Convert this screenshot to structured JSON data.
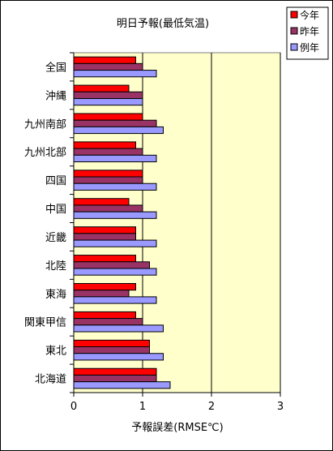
{
  "chart_data": {
    "type": "bar",
    "orientation": "horizontal",
    "title": "明日予報(最低気温)",
    "xlabel": "予報誤差(RMSE℃)",
    "ylabel": "",
    "xlim": [
      0,
      3
    ],
    "xticks": [
      "0",
      "1",
      "2",
      "3"
    ],
    "grid": "vertical lines at 1, 2, 3",
    "legend_position": "top-right",
    "categories": [
      "全国",
      "沖縄",
      "九州南部",
      "九州北部",
      "四国",
      "中国",
      "近畿",
      "北陸",
      "東海",
      "関東甲信",
      "東北",
      "北海道"
    ],
    "series": [
      {
        "name": "今年",
        "color": "#ff0000",
        "values": [
          0.9,
          0.8,
          1.0,
          0.9,
          1.0,
          0.8,
          0.9,
          0.9,
          0.9,
          0.9,
          1.1,
          1.2
        ]
      },
      {
        "name": "昨年",
        "color": "#993366",
        "values": [
          1.0,
          1.0,
          1.2,
          1.0,
          1.0,
          1.0,
          0.9,
          1.1,
          0.8,
          1.0,
          1.1,
          1.2
        ]
      },
      {
        "name": "例年",
        "color": "#9999ff",
        "values": [
          1.2,
          1.0,
          1.3,
          1.2,
          1.2,
          1.2,
          1.2,
          1.2,
          1.2,
          1.3,
          1.3,
          1.4
        ]
      }
    ],
    "plot_background": "#ffffcc"
  }
}
